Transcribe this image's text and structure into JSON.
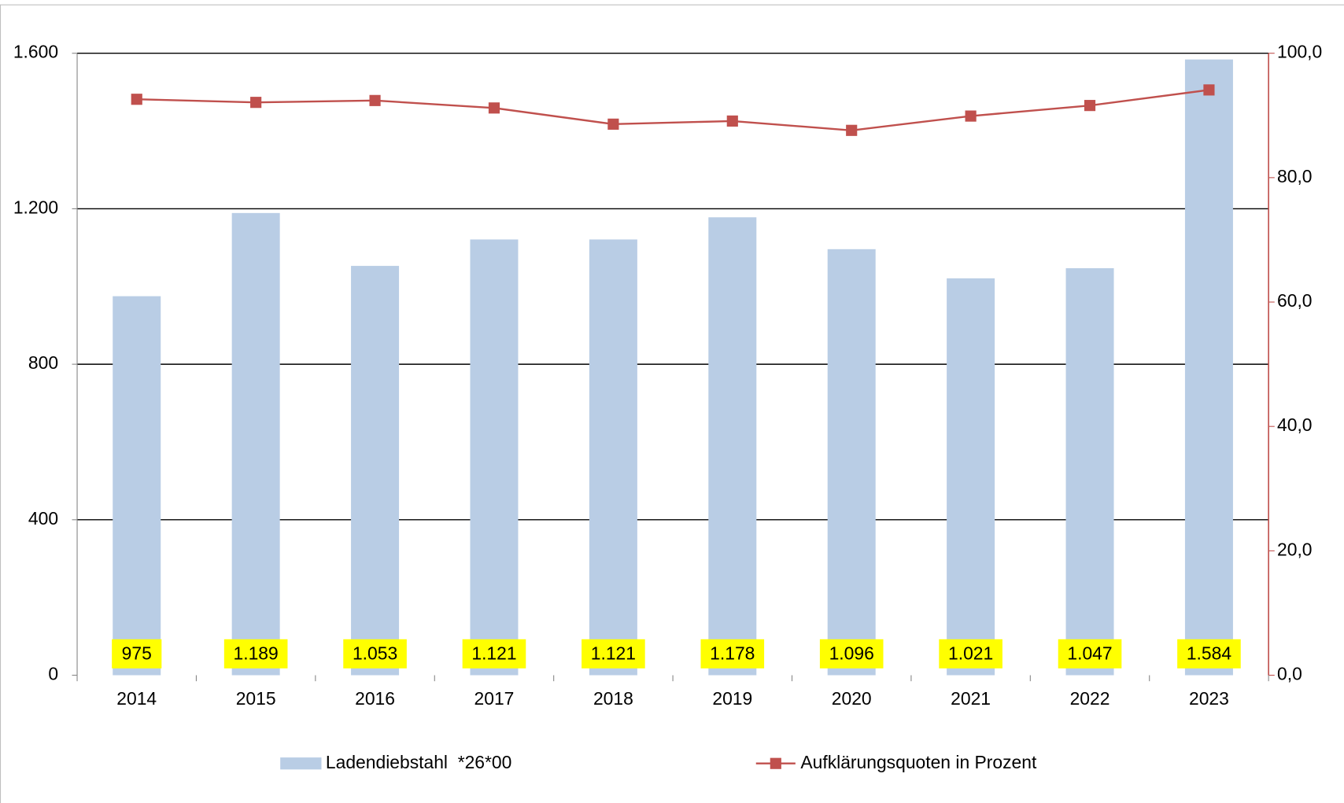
{
  "chart_data": {
    "type": "bar",
    "categories": [
      "2014",
      "2015",
      "2016",
      "2017",
      "2018",
      "2019",
      "2020",
      "2021",
      "2022",
      "2023"
    ],
    "series": [
      {
        "name": "Ladendiebstahl  *26*00",
        "type": "bar",
        "color": "#b9cde5",
        "values": [
          975,
          1189,
          1053,
          1121,
          1121,
          1178,
          1096,
          1021,
          1047,
          1584
        ],
        "value_labels": [
          "975",
          "1.189",
          "1.053",
          "1.121",
          "1.121",
          "1.178",
          "1.096",
          "1.021",
          "1.047",
          "1.584"
        ]
      },
      {
        "name": "Aufklärungsquoten in Prozent",
        "type": "line",
        "color": "#c0504d",
        "axis": "y2",
        "values": [
          92.6,
          92.1,
          92.4,
          91.2,
          88.6,
          89.1,
          87.6,
          89.9,
          91.6,
          94.1
        ]
      }
    ],
    "ylim": [
      0,
      1600
    ],
    "yticks": [
      0,
      400,
      800,
      {
        "value": 1200,
        "label": "1.200"
      },
      {
        "value": 1600,
        "label": "1.600"
      }
    ],
    "y2lim": [
      0,
      100
    ],
    "y2ticks": [
      {
        "value": 0,
        "label": "0,0"
      },
      {
        "value": 20,
        "label": "20,0"
      },
      {
        "value": 40,
        "label": "40,0"
      },
      {
        "value": 60,
        "label": "60,0"
      },
      {
        "value": 80,
        "label": "80,0"
      },
      {
        "value": 100,
        "label": "100,0"
      }
    ],
    "grid": true,
    "legend": "bottom"
  }
}
